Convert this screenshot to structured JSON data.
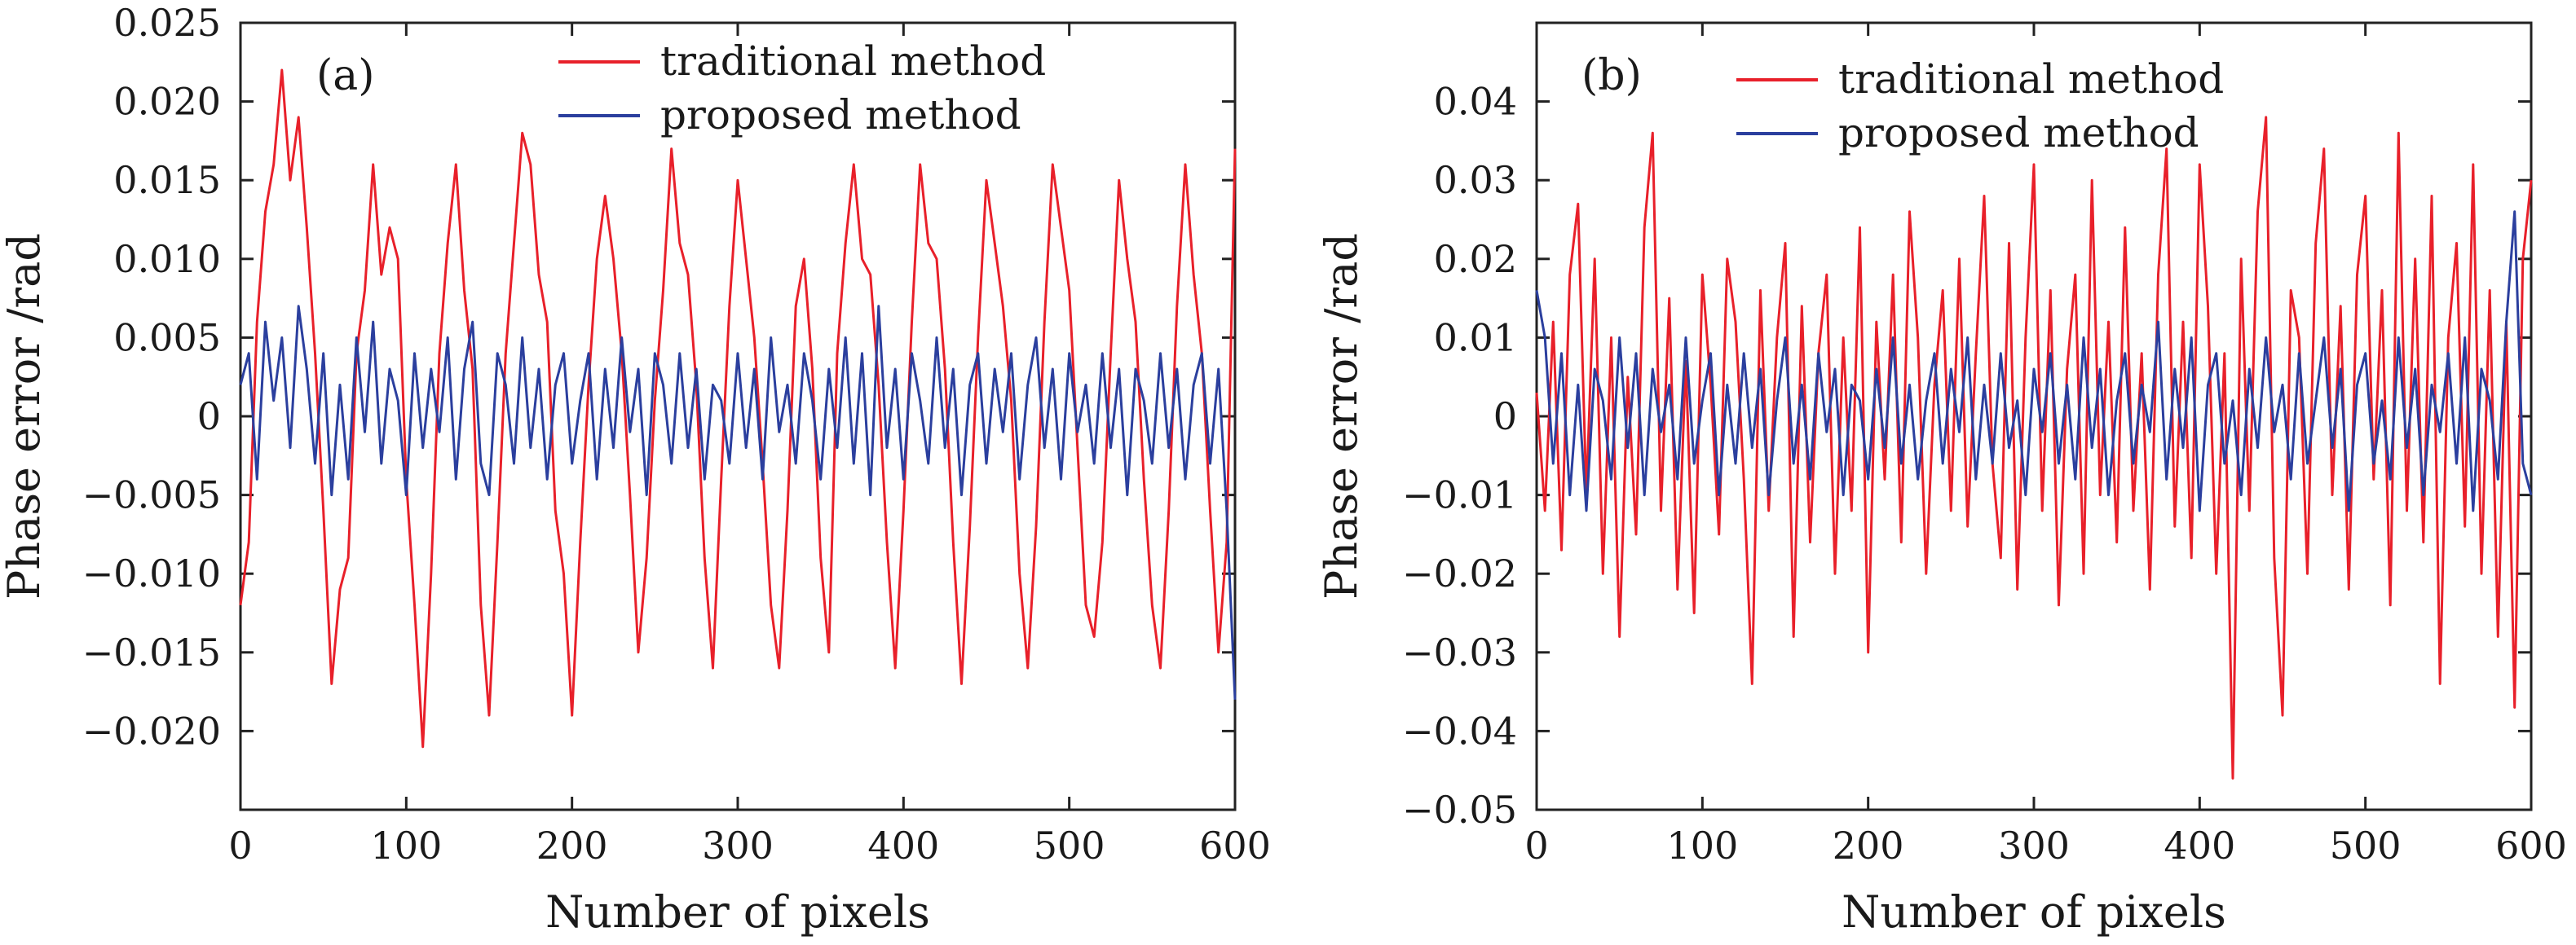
{
  "chart_data": [
    {
      "type": "line",
      "panel_label": "(a)",
      "xlabel": "Number of pixels",
      "ylabel": "Phase error /rad",
      "xlim": [
        0,
        600
      ],
      "ylim": [
        -0.025,
        0.025
      ],
      "xticks": [
        0,
        100,
        200,
        300,
        400,
        500,
        600
      ],
      "xtick_labels": [
        "0",
        "100",
        "200",
        "300",
        "400",
        "500",
        "600"
      ],
      "yticks": [
        -0.02,
        -0.015,
        -0.01,
        -0.005,
        0,
        0.005,
        0.01,
        0.015,
        0.02,
        0.025
      ],
      "ytick_labels": [
        "−0.020",
        "−0.015",
        "−0.010",
        "−0.005",
        "0",
        "0.005",
        "0.010",
        "0.015",
        "0.020",
        "0.025"
      ],
      "legend_position": "top-center",
      "series": [
        {
          "name": "traditional method",
          "color": "#e8202a",
          "x": [
            0,
            5,
            10,
            15,
            20,
            25,
            30,
            35,
            40,
            45,
            50,
            55,
            60,
            65,
            70,
            75,
            80,
            85,
            90,
            95,
            100,
            105,
            110,
            115,
            120,
            125,
            130,
            135,
            140,
            145,
            150,
            155,
            160,
            165,
            170,
            175,
            180,
            185,
            190,
            195,
            200,
            205,
            210,
            215,
            220,
            225,
            230,
            235,
            240,
            245,
            250,
            255,
            260,
            265,
            270,
            275,
            280,
            285,
            290,
            295,
            300,
            305,
            310,
            315,
            320,
            325,
            330,
            335,
            340,
            345,
            350,
            355,
            360,
            365,
            370,
            375,
            380,
            385,
            390,
            395,
            400,
            405,
            410,
            415,
            420,
            425,
            430,
            435,
            440,
            445,
            450,
            455,
            460,
            465,
            470,
            475,
            480,
            485,
            490,
            495,
            500,
            505,
            510,
            515,
            520,
            525,
            530,
            535,
            540,
            545,
            550,
            555,
            560,
            565,
            570,
            575,
            580,
            585,
            590,
            595,
            600
          ],
          "y": [
            -0.012,
            -0.008,
            0.006,
            0.013,
            0.016,
            0.022,
            0.015,
            0.019,
            0.012,
            0.004,
            -0.006,
            -0.017,
            -0.011,
            -0.009,
            0.004,
            0.008,
            0.016,
            0.009,
            0.012,
            0.01,
            -0.004,
            -0.012,
            -0.021,
            -0.01,
            0.004,
            0.011,
            0.016,
            0.008,
            0.003,
            -0.012,
            -0.019,
            -0.008,
            0.004,
            0.011,
            0.018,
            0.016,
            0.009,
            0.006,
            -0.006,
            -0.01,
            -0.019,
            -0.008,
            0.002,
            0.01,
            0.014,
            0.01,
            0.004,
            -0.005,
            -0.015,
            -0.009,
            0.001,
            0.008,
            0.017,
            0.011,
            0.009,
            0.002,
            -0.009,
            -0.016,
            -0.004,
            0.007,
            0.015,
            0.01,
            0.005,
            -0.003,
            -0.012,
            -0.016,
            -0.006,
            0.007,
            0.01,
            0.003,
            -0.009,
            -0.015,
            0.004,
            0.011,
            0.016,
            0.01,
            0.009,
            0.002,
            -0.008,
            -0.016,
            -0.006,
            0.006,
            0.016,
            0.011,
            0.01,
            0.003,
            -0.008,
            -0.017,
            -0.007,
            0.005,
            0.015,
            0.011,
            0.007,
            0.001,
            -0.01,
            -0.016,
            -0.007,
            0.006,
            0.016,
            0.012,
            0.008,
            -0.002,
            -0.012,
            -0.014,
            -0.008,
            0.004,
            0.015,
            0.01,
            0.006,
            -0.004,
            -0.012,
            -0.016,
            -0.006,
            0.007,
            0.016,
            0.009,
            0.004,
            -0.006,
            -0.015,
            -0.008,
            0.017
          ]
        },
        {
          "name": "proposed method",
          "color": "#2b3f9e",
          "x": [
            0,
            5,
            10,
            15,
            20,
            25,
            30,
            35,
            40,
            45,
            50,
            55,
            60,
            65,
            70,
            75,
            80,
            85,
            90,
            95,
            100,
            105,
            110,
            115,
            120,
            125,
            130,
            135,
            140,
            145,
            150,
            155,
            160,
            165,
            170,
            175,
            180,
            185,
            190,
            195,
            200,
            205,
            210,
            215,
            220,
            225,
            230,
            235,
            240,
            245,
            250,
            255,
            260,
            265,
            270,
            275,
            280,
            285,
            290,
            295,
            300,
            305,
            310,
            315,
            320,
            325,
            330,
            335,
            340,
            345,
            350,
            355,
            360,
            365,
            370,
            375,
            380,
            385,
            390,
            395,
            400,
            405,
            410,
            415,
            420,
            425,
            430,
            435,
            440,
            445,
            450,
            455,
            460,
            465,
            470,
            475,
            480,
            485,
            490,
            495,
            500,
            505,
            510,
            515,
            520,
            525,
            530,
            535,
            540,
            545,
            550,
            555,
            560,
            565,
            570,
            575,
            580,
            585,
            590,
            595,
            600
          ],
          "y": [
            0.002,
            0.004,
            -0.004,
            0.006,
            0.001,
            0.005,
            -0.002,
            0.007,
            0.003,
            -0.003,
            0.004,
            -0.005,
            0.002,
            -0.004,
            0.005,
            -0.001,
            0.006,
            -0.003,
            0.003,
            0.001,
            -0.005,
            0.004,
            -0.002,
            0.003,
            -0.001,
            0.005,
            -0.004,
            0.003,
            0.006,
            -0.003,
            -0.005,
            0.004,
            0.002,
            -0.003,
            0.005,
            -0.002,
            0.003,
            -0.004,
            0.002,
            0.004,
            -0.003,
            0.001,
            0.004,
            -0.004,
            0.003,
            -0.002,
            0.005,
            -0.001,
            0.003,
            -0.005,
            0.004,
            0.002,
            -0.003,
            0.004,
            -0.002,
            0.003,
            -0.004,
            0.002,
            0.001,
            -0.003,
            0.004,
            -0.002,
            0.003,
            -0.004,
            0.005,
            -0.001,
            0.002,
            -0.003,
            0.004,
            0.001,
            -0.004,
            0.003,
            -0.002,
            0.005,
            -0.003,
            0.004,
            -0.005,
            0.007,
            -0.002,
            0.003,
            -0.004,
            0.004,
            0.001,
            -0.003,
            0.005,
            -0.002,
            0.003,
            -0.005,
            0.002,
            0.004,
            -0.003,
            0.003,
            -0.001,
            0.004,
            -0.004,
            0.002,
            0.005,
            -0.002,
            0.003,
            -0.004,
            0.004,
            -0.001,
            0.002,
            -0.003,
            0.004,
            -0.002,
            0.003,
            -0.005,
            0.003,
            0.001,
            -0.003,
            0.004,
            -0.002,
            0.003,
            -0.004,
            0.002,
            0.004,
            -0.003,
            0.003,
            -0.006,
            -0.018
          ]
        }
      ]
    },
    {
      "type": "line",
      "panel_label": "(b)",
      "xlabel": "Number of pixels",
      "ylabel": "Phase error /rad",
      "xlim": [
        0,
        600
      ],
      "ylim": [
        -0.05,
        0.05
      ],
      "xticks": [
        0,
        100,
        200,
        300,
        400,
        500,
        600
      ],
      "xtick_labels": [
        "0",
        "100",
        "200",
        "300",
        "400",
        "500",
        "600"
      ],
      "yticks": [
        -0.05,
        -0.04,
        -0.03,
        -0.02,
        -0.01,
        0,
        0.01,
        0.02,
        0.03,
        0.04
      ],
      "ytick_labels": [
        "−0.05",
        "−0.04",
        "−0.03",
        "−0.02",
        "−0.01",
        "0",
        "0.01",
        "0.02",
        "0.03",
        "0.04"
      ],
      "legend_position": "top-center",
      "series": [
        {
          "name": "traditional method",
          "color": "#e8202a",
          "x": [
            0,
            5,
            10,
            15,
            20,
            25,
            30,
            35,
            40,
            45,
            50,
            55,
            60,
            65,
            70,
            75,
            80,
            85,
            90,
            95,
            100,
            105,
            110,
            115,
            120,
            125,
            130,
            135,
            140,
            145,
            150,
            155,
            160,
            165,
            170,
            175,
            180,
            185,
            190,
            195,
            200,
            205,
            210,
            215,
            220,
            225,
            230,
            235,
            240,
            245,
            250,
            255,
            260,
            265,
            270,
            275,
            280,
            285,
            290,
            295,
            300,
            305,
            310,
            315,
            320,
            325,
            330,
            335,
            340,
            345,
            350,
            355,
            360,
            365,
            370,
            375,
            380,
            385,
            390,
            395,
            400,
            405,
            410,
            415,
            420,
            425,
            430,
            435,
            440,
            445,
            450,
            455,
            460,
            465,
            470,
            475,
            480,
            485,
            490,
            495,
            500,
            505,
            510,
            515,
            520,
            525,
            530,
            535,
            540,
            545,
            550,
            555,
            560,
            565,
            570,
            575,
            580,
            585,
            590,
            595,
            600
          ],
          "y": [
            0.003,
            -0.012,
            0.012,
            -0.017,
            0.018,
            0.027,
            -0.01,
            0.02,
            -0.02,
            0.01,
            -0.028,
            0.005,
            -0.015,
            0.024,
            0.036,
            -0.012,
            0.015,
            -0.022,
            0.007,
            -0.025,
            0.018,
            0.004,
            -0.015,
            0.02,
            0.012,
            -0.008,
            -0.034,
            0.016,
            -0.012,
            0.01,
            0.022,
            -0.028,
            0.014,
            -0.016,
            0.008,
            0.018,
            -0.02,
            0.01,
            -0.012,
            0.024,
            -0.03,
            0.012,
            -0.008,
            0.018,
            -0.016,
            0.026,
            0.01,
            -0.02,
            0.004,
            0.016,
            -0.012,
            0.02,
            -0.014,
            0.008,
            0.028,
            -0.006,
            -0.018,
            0.022,
            -0.022,
            0.01,
            0.032,
            -0.012,
            0.016,
            -0.024,
            0.006,
            0.018,
            -0.02,
            0.03,
            -0.01,
            0.012,
            -0.016,
            0.024,
            -0.012,
            0.008,
            -0.022,
            0.018,
            0.034,
            -0.014,
            0.012,
            -0.018,
            0.032,
            0.014,
            -0.02,
            0.008,
            -0.046,
            0.02,
            -0.012,
            0.026,
            0.038,
            -0.018,
            -0.038,
            0.016,
            0.01,
            -0.02,
            0.022,
            0.034,
            -0.01,
            0.014,
            -0.022,
            0.018,
            0.028,
            -0.008,
            0.016,
            -0.024,
            0.036,
            -0.012,
            0.02,
            -0.016,
            0.028,
            -0.034,
            0.01,
            0.022,
            -0.014,
            0.032,
            -0.02,
            0.016,
            -0.028,
            0.012,
            -0.037,
            0.02,
            0.03
          ]
        },
        {
          "name": "proposed method",
          "color": "#2b3f9e",
          "x": [
            0,
            5,
            10,
            15,
            20,
            25,
            30,
            35,
            40,
            45,
            50,
            55,
            60,
            65,
            70,
            75,
            80,
            85,
            90,
            95,
            100,
            105,
            110,
            115,
            120,
            125,
            130,
            135,
            140,
            145,
            150,
            155,
            160,
            165,
            170,
            175,
            180,
            185,
            190,
            195,
            200,
            205,
            210,
            215,
            220,
            225,
            230,
            235,
            240,
            245,
            250,
            255,
            260,
            265,
            270,
            275,
            280,
            285,
            290,
            295,
            300,
            305,
            310,
            315,
            320,
            325,
            330,
            335,
            340,
            345,
            350,
            355,
            360,
            365,
            370,
            375,
            380,
            385,
            390,
            395,
            400,
            405,
            410,
            415,
            420,
            425,
            430,
            435,
            440,
            445,
            450,
            455,
            460,
            465,
            470,
            475,
            480,
            485,
            490,
            495,
            500,
            505,
            510,
            515,
            520,
            525,
            530,
            535,
            540,
            545,
            550,
            555,
            560,
            565,
            570,
            575,
            580,
            585,
            590,
            595,
            600
          ],
          "y": [
            0.016,
            0.01,
            -0.006,
            0.008,
            -0.01,
            0.004,
            -0.012,
            0.006,
            0.002,
            -0.008,
            0.01,
            -0.004,
            0.008,
            -0.01,
            0.006,
            -0.002,
            0.004,
            -0.008,
            0.01,
            -0.006,
            0.002,
            0.008,
            -0.01,
            0.004,
            -0.006,
            0.008,
            -0.004,
            0.006,
            -0.01,
            0.002,
            0.01,
            -0.006,
            0.004,
            -0.008,
            0.008,
            -0.002,
            0.006,
            -0.01,
            0.004,
            0.002,
            -0.008,
            0.006,
            -0.004,
            0.01,
            -0.006,
            0.004,
            -0.008,
            0.002,
            0.008,
            -0.006,
            0.006,
            -0.002,
            0.01,
            -0.008,
            0.004,
            -0.006,
            0.008,
            -0.004,
            0.002,
            -0.01,
            0.006,
            -0.002,
            0.008,
            -0.006,
            0.004,
            -0.008,
            0.01,
            -0.004,
            0.006,
            -0.01,
            0.002,
            0.008,
            -0.006,
            0.004,
            -0.002,
            0.012,
            -0.008,
            0.006,
            -0.004,
            0.01,
            -0.012,
            0.004,
            0.008,
            -0.006,
            0.002,
            -0.01,
            0.006,
            -0.004,
            0.01,
            -0.002,
            0.004,
            -0.008,
            0.008,
            -0.006,
            0.002,
            0.01,
            -0.004,
            0.006,
            -0.012,
            0.004,
            0.008,
            -0.006,
            0.002,
            -0.008,
            0.01,
            -0.004,
            0.006,
            -0.01,
            0.004,
            -0.002,
            0.008,
            -0.006,
            0.01,
            -0.012,
            0.006,
            0.002,
            -0.008,
            0.012,
            0.026,
            -0.006,
            -0.01
          ]
        }
      ]
    }
  ]
}
